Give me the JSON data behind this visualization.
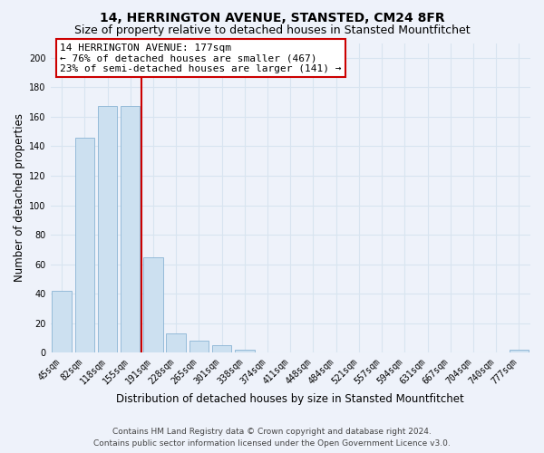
{
  "title": "14, HERRINGTON AVENUE, STANSTED, CM24 8FR",
  "subtitle": "Size of property relative to detached houses in Stansted Mountfitchet",
  "xlabel": "Distribution of detached houses by size in Stansted Mountfitchet",
  "ylabel": "Number of detached properties",
  "bar_labels": [
    "45sqm",
    "82sqm",
    "118sqm",
    "155sqm",
    "191sqm",
    "228sqm",
    "265sqm",
    "301sqm",
    "338sqm",
    "374sqm",
    "411sqm",
    "448sqm",
    "484sqm",
    "521sqm",
    "557sqm",
    "594sqm",
    "631sqm",
    "667sqm",
    "704sqm",
    "740sqm",
    "777sqm"
  ],
  "bar_values": [
    42,
    146,
    167,
    167,
    65,
    13,
    8,
    5,
    2,
    0,
    0,
    0,
    0,
    0,
    0,
    0,
    0,
    0,
    0,
    0,
    2
  ],
  "bar_color": "#cce0f0",
  "bar_edge_color": "#8ab4d4",
  "property_line_color": "#cc0000",
  "property_line_index": 3.5,
  "ylim": [
    0,
    210
  ],
  "yticks": [
    0,
    20,
    40,
    60,
    80,
    100,
    120,
    140,
    160,
    180,
    200
  ],
  "annotation_text_line1": "14 HERRINGTON AVENUE: 177sqm",
  "annotation_text_line2": "← 76% of detached houses are smaller (467)",
  "annotation_text_line3": "23% of semi-detached houses are larger (141) →",
  "footer_line1": "Contains HM Land Registry data © Crown copyright and database right 2024.",
  "footer_line2": "Contains public sector information licensed under the Open Government Licence v3.0.",
  "background_color": "#eef2fa",
  "grid_color": "#d8e4f0",
  "title_fontsize": 10,
  "subtitle_fontsize": 9,
  "axis_label_fontsize": 8.5,
  "tick_fontsize": 7,
  "annotation_fontsize": 8,
  "footer_fontsize": 6.5
}
